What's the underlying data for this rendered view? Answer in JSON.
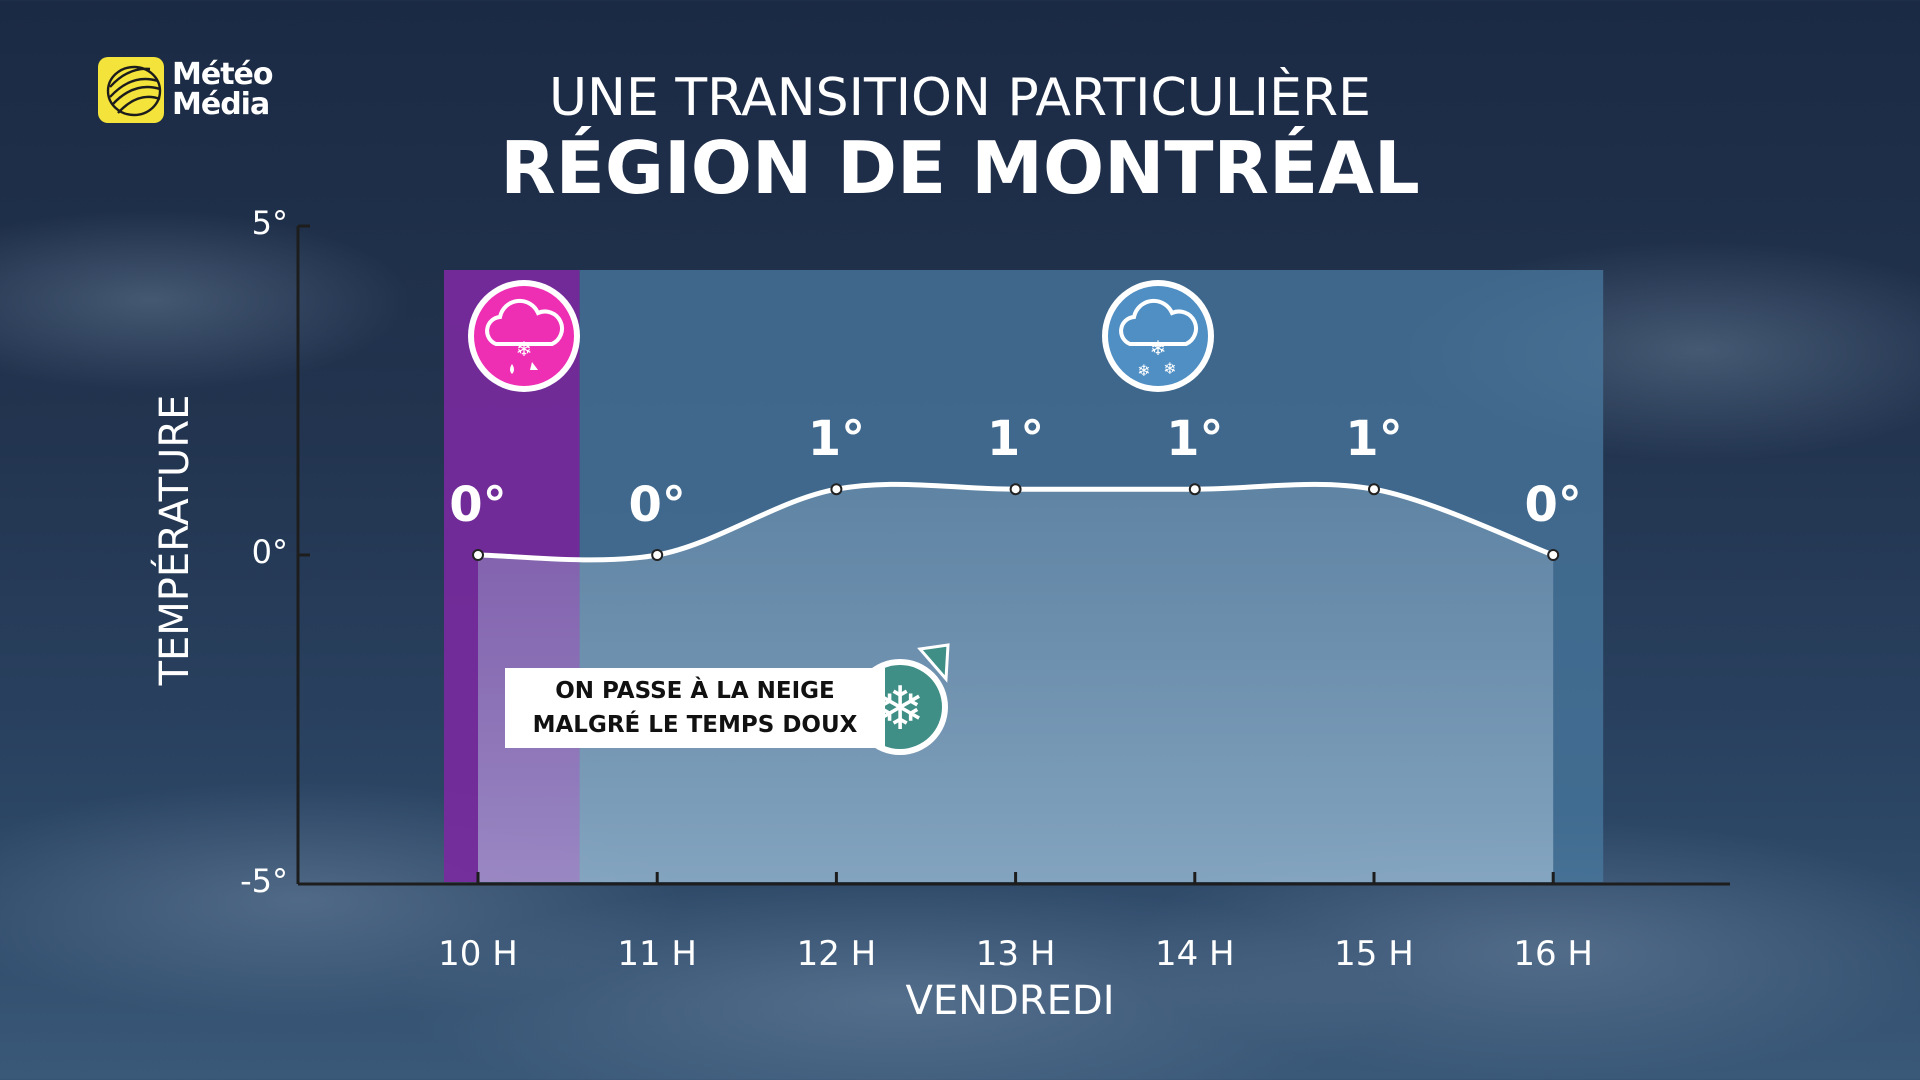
{
  "brand": {
    "line1": "Météo",
    "line2": "Média"
  },
  "title_line1": "UNE TRANSITION PARTICULIÈRE",
  "title_line2": "RÉGION DE MONTRÉAL",
  "callout": {
    "line1": "ON PASSE À LA NEIGE",
    "line2": "MALGRÉ LE TEMPS DOUX",
    "icon": "snowflake-icon"
  },
  "colors": {
    "mixed_zone": "#7a2aa0",
    "snow_zone": "#4a7aa0",
    "line": "#ffffff",
    "mixed_icon": "#ee2fb4",
    "snow_icon": "#4f8fc4",
    "callout_icon": "#3f8f86"
  },
  "chart_data": {
    "type": "line",
    "title": "UNE TRANSITION PARTICULIÈRE",
    "subtitle": "RÉGION DE MONTRÉAL",
    "xlabel": "VENDREDI",
    "ylabel": "TEMPÉRATURE",
    "categories": [
      "10 H",
      "11 H",
      "12 H",
      "13 H",
      "14 H",
      "15 H",
      "16 H"
    ],
    "values": [
      0,
      0,
      1,
      1,
      1,
      1,
      0
    ],
    "data_labels": [
      "0°",
      "0°",
      "1°",
      "1°",
      "1°",
      "1°",
      "0°"
    ],
    "ylim": [
      -5,
      5
    ],
    "yticks": [
      5,
      0,
      -5
    ],
    "ytick_labels": [
      "5°",
      "0°",
      "-5°"
    ],
    "grid": false,
    "precip_zones": [
      {
        "type": "mixed",
        "icon": "rain-snow-mix-icon",
        "from": "10 H",
        "to": "11 H"
      },
      {
        "type": "snow",
        "icon": "snow-icon",
        "from": "11 H",
        "to": "16 H"
      }
    ]
  }
}
